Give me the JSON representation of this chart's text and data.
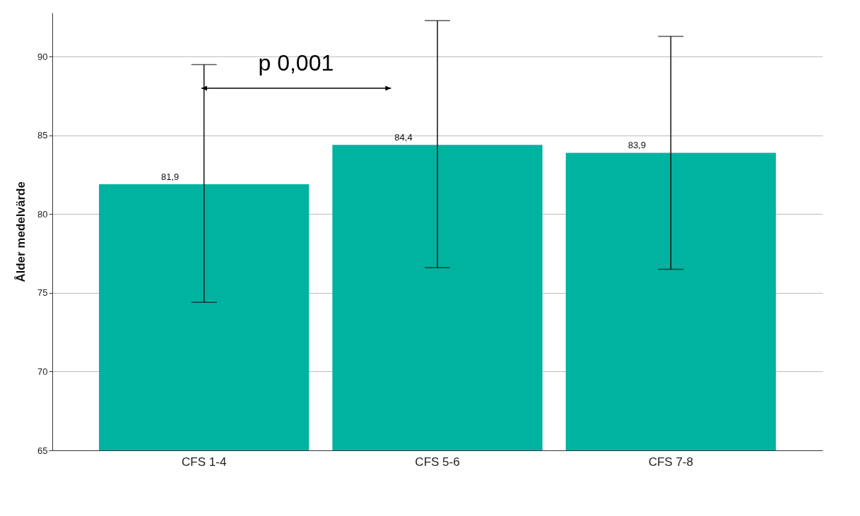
{
  "chart_data": {
    "type": "bar",
    "ylabel": "Ålder medelvärde",
    "categories": [
      "CFS 1-4",
      "CFS 5-6",
      "CFS 7-8"
    ],
    "values": [
      81.9,
      84.4,
      83.9
    ],
    "value_labels": [
      "81,9",
      "84,4",
      "83,9"
    ],
    "errors": [
      [
        74.4,
        89.5
      ],
      [
        76.6,
        92.3
      ],
      [
        76.5,
        91.3
      ]
    ],
    "color": "#00b3a1",
    "ylim": [
      65,
      92.8
    ],
    "yticks": [
      65,
      70,
      75,
      80,
      85,
      90
    ],
    "grid": "y",
    "annotations": [
      "p 0,001"
    ]
  }
}
